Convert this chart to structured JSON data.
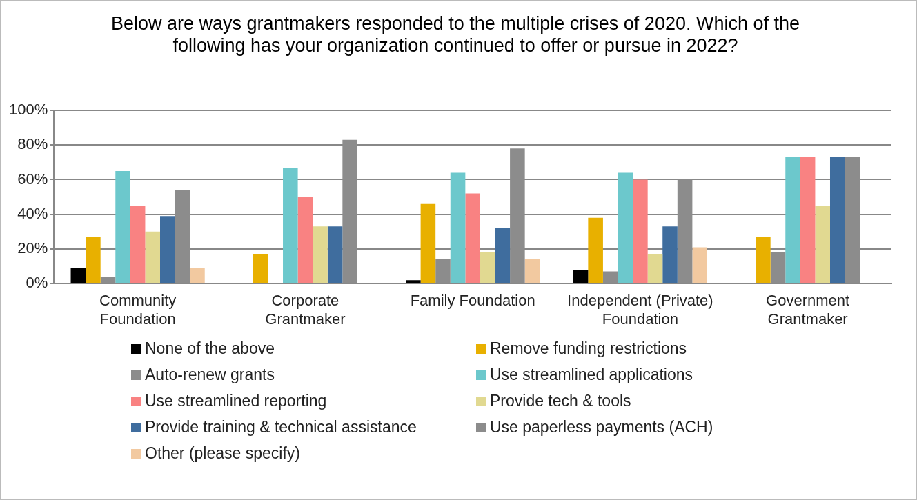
{
  "chart_data": {
    "type": "bar",
    "title": "Below are ways grantmakers responded to the multiple crises of 2020. Which of the following has your organization continued to offer or pursue in 2022?",
    "categories": [
      "Community Foundation",
      "Corporate Grantmaker",
      "Family Foundation",
      "Independent (Private) Foundation",
      "Government Grantmaker"
    ],
    "series": [
      {
        "name": "None of the above",
        "color": "#000000",
        "values": [
          9,
          0,
          2,
          8,
          0
        ]
      },
      {
        "name": "Remove funding restrictions",
        "color": "#e8b000",
        "values": [
          27,
          17,
          46,
          38,
          27
        ]
      },
      {
        "name": "Auto-renew grants",
        "color": "#8c8c8c",
        "values": [
          4,
          0,
          14,
          7,
          18
        ]
      },
      {
        "name": "Use streamlined applications",
        "color": "#6cc8cc",
        "values": [
          65,
          67,
          64,
          64,
          73
        ]
      },
      {
        "name": "Use streamlined reporting",
        "color": "#f98282",
        "values": [
          45,
          50,
          52,
          60,
          73
        ]
      },
      {
        "name": "Provide tech & tools",
        "color": "#e1d991",
        "values": [
          30,
          33,
          18,
          17,
          45
        ]
      },
      {
        "name": "Provide training & technical assistance",
        "color": "#3f6d9e",
        "values": [
          39,
          33,
          32,
          33,
          73
        ]
      },
      {
        "name": "Use paperless payments (ACH)",
        "color": "#8c8c8c",
        "values": [
          54,
          83,
          78,
          60,
          73
        ]
      },
      {
        "name": "Other (please specify)",
        "color": "#f2c9a0",
        "values": [
          9,
          0,
          14,
          21,
          0
        ]
      }
    ],
    "ylim": [
      0,
      100
    ],
    "yticks": [
      {
        "value": 0,
        "label": "0%"
      },
      {
        "value": 20,
        "label": "20%"
      },
      {
        "value": 40,
        "label": "40%"
      },
      {
        "value": 60,
        "label": "60%"
      },
      {
        "value": 80,
        "label": "80%"
      },
      {
        "value": 100,
        "label": "100%"
      }
    ],
    "grid": "y",
    "legend": "bottom"
  }
}
